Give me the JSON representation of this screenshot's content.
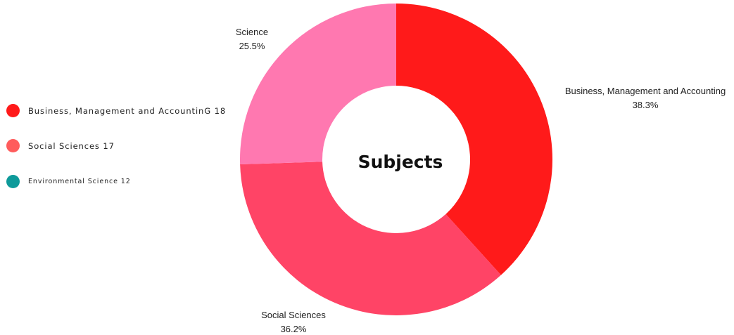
{
  "chart_data": {
    "type": "pie",
    "title": "Subjects",
    "slices": [
      {
        "label": "Business, Management and Accounting",
        "value": 38.3,
        "value_label": "38.3%",
        "color": "#ff1a1a"
      },
      {
        "label": "Social Sciences",
        "value": 36.2,
        "value_label": "36.2%",
        "color": "#ff4466"
      },
      {
        "label": "Science",
        "value": 25.5,
        "value_label": "25.5%",
        "color": "#ff78b0"
      }
    ],
    "legend": {
      "placement": "left",
      "items": [
        {
          "label": "Business, Management and AccountinG 18",
          "color": "#ff1a1a"
        },
        {
          "label": "Social Sciences 17",
          "color": "#ff5c5c"
        },
        {
          "label": "Environmental Science 12",
          "color": "#0e9a9a"
        }
      ]
    }
  }
}
